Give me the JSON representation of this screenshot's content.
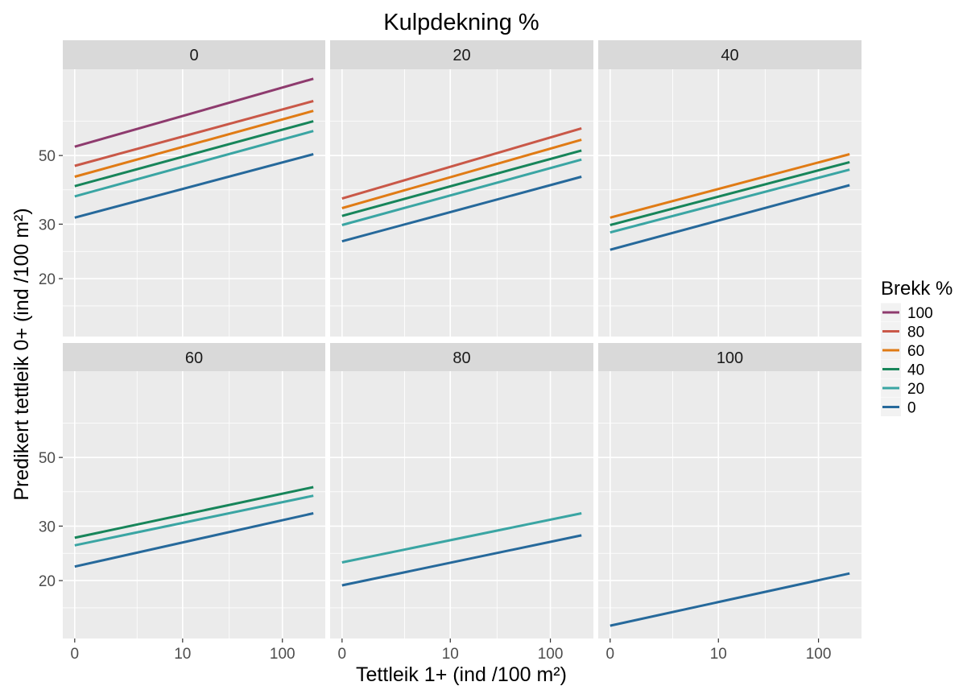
{
  "chart_data": {
    "type": "line",
    "title": "Kulpdekning %",
    "xlabel": "Tettleik 1+ (ind /100 m²)",
    "ylabel": "Predikert tettleik 0+ (ind /100 m²)",
    "x_scale": "log10(x+1)",
    "x_range": [
      0,
      200
    ],
    "x_ticks": [
      0,
      10,
      100
    ],
    "x_tick_labels": [
      "0",
      "10",
      "100"
    ],
    "y_scale": "log10",
    "y_range": [
      13,
      95
    ],
    "y_ticks": [
      20,
      30,
      50
    ],
    "y_tick_labels": [
      "20",
      "30",
      "50"
    ],
    "grid": true,
    "legend": {
      "title": "Brekk %",
      "position": "right",
      "entries": [
        {
          "label": "100",
          "color": "#8e3b6e"
        },
        {
          "label": "80",
          "color": "#c95848"
        },
        {
          "label": "60",
          "color": "#e07b15"
        },
        {
          "label": "40",
          "color": "#17855a"
        },
        {
          "label": "20",
          "color": "#3aa5a3"
        },
        {
          "label": "0",
          "color": "#26699b"
        }
      ]
    },
    "panels": [
      {
        "label": "0",
        "series": [
          {
            "name": "100",
            "x": [
              0,
              200
            ],
            "y": [
              53.4,
              88.5
            ]
          },
          {
            "name": "80",
            "x": [
              0,
              200
            ],
            "y": [
              46.3,
              75.0
            ]
          },
          {
            "name": "60",
            "x": [
              0,
              200
            ],
            "y": [
              42.7,
              69.7
            ]
          },
          {
            "name": "40",
            "x": [
              0,
              200
            ],
            "y": [
              39.8,
              64.5
            ]
          },
          {
            "name": "20",
            "x": [
              0,
              200
            ],
            "y": [
              36.9,
              60.0
            ]
          },
          {
            "name": "0",
            "x": [
              0,
              200
            ],
            "y": [
              31.5,
              50.5
            ]
          }
        ]
      },
      {
        "label": "20",
        "series": [
          {
            "name": "80",
            "x": [
              0,
              200
            ],
            "y": [
              36.3,
              61.2
            ]
          },
          {
            "name": "60",
            "x": [
              0,
              200
            ],
            "y": [
              33.8,
              56.2
            ]
          },
          {
            "name": "40",
            "x": [
              0,
              200
            ],
            "y": [
              31.9,
              51.9
            ]
          },
          {
            "name": "20",
            "x": [
              0,
              200
            ],
            "y": [
              29.8,
              48.5
            ]
          },
          {
            "name": "0",
            "x": [
              0,
              200
            ],
            "y": [
              26.4,
              42.7
            ]
          }
        ]
      },
      {
        "label": "40",
        "series": [
          {
            "name": "60",
            "x": [
              0,
              200
            ],
            "y": [
              31.5,
              50.5
            ]
          },
          {
            "name": "40",
            "x": [
              0,
              200
            ],
            "y": [
              29.8,
              47.6
            ]
          },
          {
            "name": "20",
            "x": [
              0,
              200
            ],
            "y": [
              28.2,
              45.0
            ]
          },
          {
            "name": "0",
            "x": [
              0,
              200
            ],
            "y": [
              24.8,
              40.1
            ]
          }
        ]
      },
      {
        "label": "60",
        "series": [
          {
            "name": "40",
            "x": [
              0,
              200
            ],
            "y": [
              27.5,
              40.1
            ]
          },
          {
            "name": "20",
            "x": [
              0,
              200
            ],
            "y": [
              26.0,
              37.6
            ]
          },
          {
            "name": "0",
            "x": [
              0,
              200
            ],
            "y": [
              22.2,
              33.0
            ]
          }
        ]
      },
      {
        "label": "80",
        "series": [
          {
            "name": "20",
            "x": [
              0,
              200
            ],
            "y": [
              22.9,
              33.0
            ]
          },
          {
            "name": "0",
            "x": [
              0,
              200
            ],
            "y": [
              19.3,
              28.0
            ]
          }
        ]
      },
      {
        "label": "100",
        "series": [
          {
            "name": "0",
            "x": [
              0,
              200
            ],
            "y": [
              14.3,
              21.1
            ]
          }
        ]
      }
    ]
  }
}
